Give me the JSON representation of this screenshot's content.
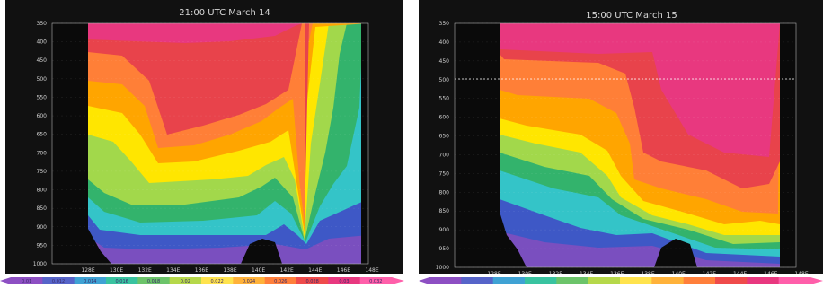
{
  "chart_data": [
    {
      "type": "heatmap",
      "title": "21:00 UTC March 14",
      "y_ticks": [
        "350",
        "400",
        "450",
        "500",
        "550",
        "600",
        "650",
        "700",
        "750",
        "800",
        "850",
        "900",
        "950",
        "1000"
      ],
      "x_ticks": [
        "128E",
        "130E",
        "132E",
        "134E",
        "136E",
        "138E",
        "140E",
        "142E",
        "144E",
        "146E",
        "148E"
      ],
      "colorbar_labels": [
        "0.01",
        "0.012",
        "0.014",
        "0.016",
        "0.018",
        "0.02",
        "0.022",
        "0.024",
        "0.026",
        "0.028",
        "0.03",
        "0.032"
      ],
      "colors": [
        "#e8387f",
        "#e8434b",
        "#ff7f37",
        "#ffa500",
        "#ffe600",
        "#a2d84b",
        "#33b36c",
        "#34c4c8",
        "#3e58c6",
        "#7a4fbf"
      ]
    },
    {
      "type": "heatmap",
      "title": "15:00 UTC March 15",
      "y_ticks": [
        "350",
        "400",
        "450",
        "500",
        "550",
        "600",
        "650",
        "700",
        "750",
        "800",
        "850",
        "900",
        "950",
        "1000"
      ],
      "x_ticks": [
        "128E",
        "130E",
        "132E",
        "134E",
        "136E",
        "138E",
        "140E",
        "142E",
        "144E",
        "146E",
        "148E"
      ],
      "colors": [
        "#e8387f",
        "#e8434b",
        "#ff7f37",
        "#ffa500",
        "#ffe600",
        "#a2d84b",
        "#33b36c",
        "#34c4c8",
        "#3e58c6",
        "#7a4fbf"
      ]
    }
  ]
}
